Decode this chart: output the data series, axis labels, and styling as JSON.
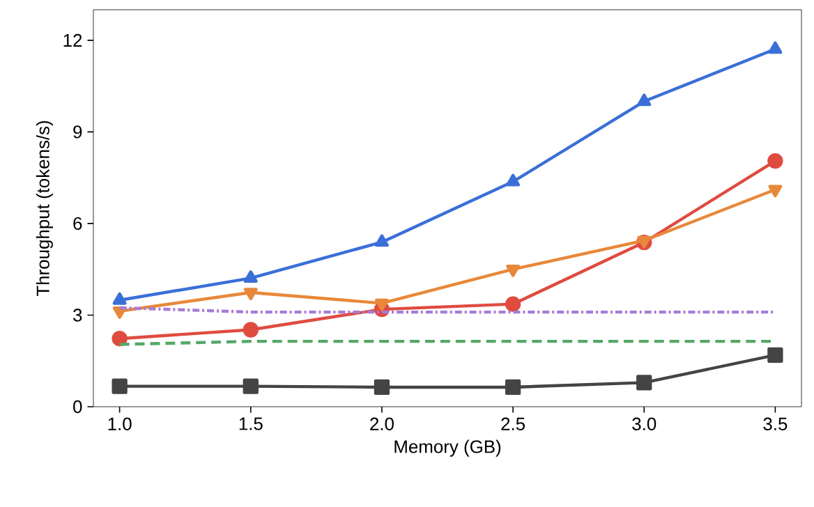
{
  "chart_data": {
    "type": "line",
    "xlabel": "Memory (GB)",
    "ylabel": "Throughput (tokens/s)",
    "x": [
      1.0,
      1.5,
      2.0,
      2.5,
      3.0,
      3.5
    ],
    "xlim": [
      0.9,
      3.6
    ],
    "ylim": [
      0,
      13
    ],
    "xticks": [
      {
        "value": 1.0,
        "label": "1.0"
      },
      {
        "value": 1.5,
        "label": "1.5"
      },
      {
        "value": 2.0,
        "label": "2.0"
      },
      {
        "value": 2.5,
        "label": "2.5"
      },
      {
        "value": 3.0,
        "label": "3.0"
      },
      {
        "value": 3.5,
        "label": "3.5"
      }
    ],
    "yticks": [
      0,
      3,
      6,
      9,
      12
    ],
    "grid": false,
    "series": [
      {
        "color": "#3a6fd8",
        "marker": "triangle",
        "line_style": "solid",
        "values": [
          3.49,
          4.21,
          5.39,
          7.37,
          10.0,
          11.71
        ]
      },
      {
        "color": "#e04b40",
        "marker": "circle",
        "line_style": "solid",
        "values": [
          2.23,
          2.52,
          3.19,
          3.36,
          5.38,
          8.05
        ]
      },
      {
        "color": "#e8883a",
        "marker": "triangle-down",
        "line_style": "solid",
        "values": [
          3.13,
          3.74,
          3.39,
          4.5,
          5.44,
          7.11
        ]
      },
      {
        "color": "#a77bd6",
        "marker": "none",
        "line_style": "dashdot",
        "values": [
          3.24,
          3.1,
          3.1,
          3.1,
          3.1,
          3.1
        ]
      },
      {
        "color": "#55a868",
        "marker": "none",
        "line_style": "dashed",
        "values": [
          2.04,
          2.14,
          2.14,
          2.14,
          2.14,
          2.14
        ]
      },
      {
        "color": "#444444",
        "marker": "square",
        "line_style": "solid",
        "values": [
          0.67,
          0.67,
          0.64,
          0.64,
          0.79,
          1.69
        ]
      }
    ]
  }
}
